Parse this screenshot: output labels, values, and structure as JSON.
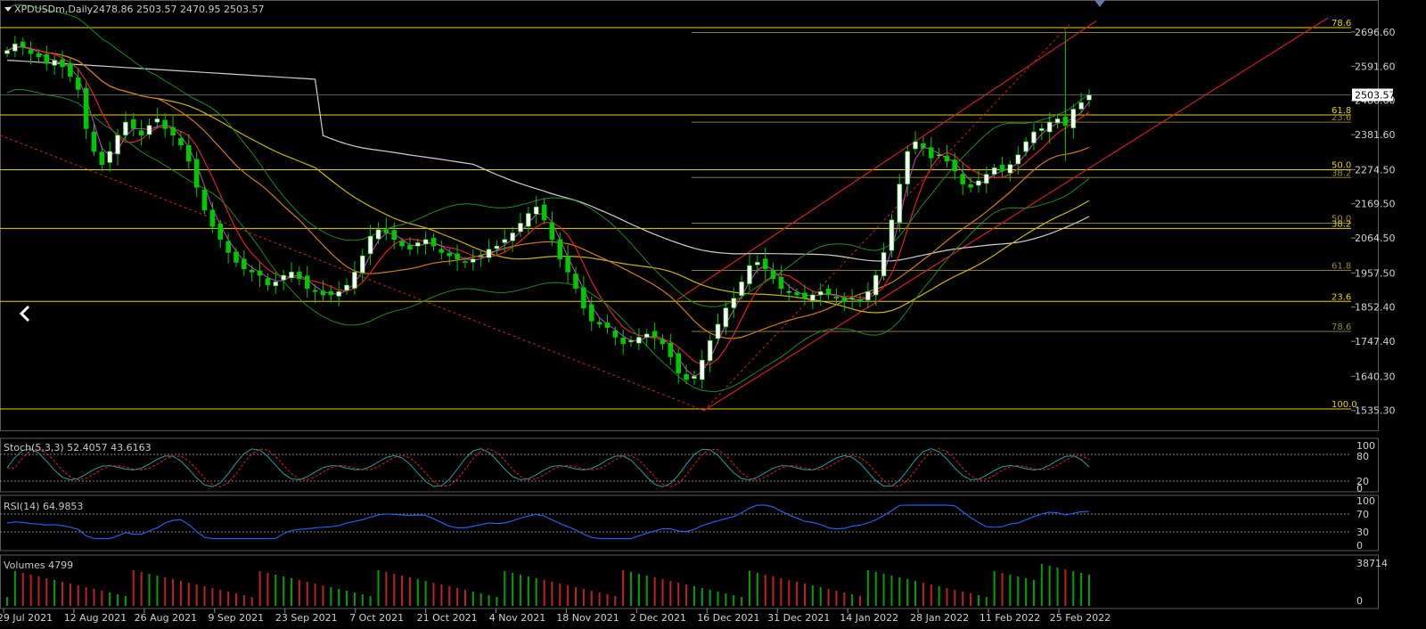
{
  "symbol_header": {
    "symbol": "XPDUSDm,Daily",
    "ohlc": "2478.86 2503.57 2470.95 2503.57"
  },
  "price_axis": {
    "ticks": [
      "2696.60",
      "2591.60",
      "2486.60",
      "2381.60",
      "2274.50",
      "2169.50",
      "2064.50",
      "1957.50",
      "1852.40",
      "1747.40",
      "1640.30",
      "1535.30"
    ],
    "current_price": "2503.57",
    "min": 1510,
    "max": 2740
  },
  "date_axis": {
    "labels": [
      "29 Jul 2021",
      "12 Aug 2021",
      "26 Aug 2021",
      "9 Sep 2021",
      "23 Sep 2021",
      "7 Oct 2021",
      "21 Oct 2021",
      "4 Nov 2021",
      "18 Nov 2021",
      "2 Dec 2021",
      "16 Dec 2021",
      "31 Dec 2021",
      "14 Jan 2022",
      "28 Jan 2022",
      "11 Feb 2022",
      "25 Feb 2022"
    ]
  },
  "fib_labels": {
    "upper": [
      {
        "text": "78.6",
        "price": 2710,
        "color": "#e8d000"
      },
      {
        "text": "61.8",
        "price": 2442,
        "color": "#e8d000"
      },
      {
        "text": "23.6",
        "price": 2420,
        "color": "#9a8a3a"
      },
      {
        "text": "50.0",
        "price": 2274,
        "color": "#e8d000"
      },
      {
        "text": "38.2",
        "price": 2250,
        "color": "#9a8a3a"
      },
      {
        "text": "50.0",
        "price": 2110,
        "color": "#9a8a3a"
      },
      {
        "text": "38.2",
        "price": 2094,
        "color": "#e8d000"
      },
      {
        "text": "61.8",
        "price": 1965,
        "color": "#9a8a3a"
      },
      {
        "text": "23.6",
        "price": 1870,
        "color": "#e8d000"
      },
      {
        "text": "78.6",
        "price": 1778,
        "color": "#9a8a3a"
      },
      {
        "text": "100.0",
        "price": 1540,
        "color": "#e8d000"
      }
    ]
  },
  "stoch_panel": {
    "label": "Stoch(5,3,3) 52.4057 43.6163",
    "levels": [
      "100",
      "80",
      "20",
      "0"
    ]
  },
  "rsi_panel": {
    "label": "RSI(14) 64.9853",
    "levels": [
      "100",
      "70",
      "30",
      "0"
    ]
  },
  "volume_panel": {
    "label": "Volumes 4799",
    "levels": [
      "38714",
      "0"
    ]
  },
  "colors": {
    "bull_candle": "#ffffff",
    "bear_candle": "#00c800",
    "fib_line": "#e8d000",
    "channel": "#d02020",
    "ma_white": "#cfcfcf",
    "ma_yellow": "#c8b400",
    "ma_orange": "#d07a10",
    "ma_red": "#e02020",
    "ma_magenta": "#d040d0",
    "bollinger": "#208a20",
    "stoch_main": "#20a0a0",
    "stoch_signal": "#e02020",
    "rsi": "#2060e0"
  },
  "icons": {
    "back_arrow": "chevron-left-icon",
    "header_menu": "triangle-down-icon"
  },
  "chart_data": {
    "type": "candlestick",
    "title": "XPDUSDm,Daily",
    "ylim": [
      1510,
      2740
    ],
    "closes": [
      2640,
      2660,
      2650,
      2630,
      2620,
      2600,
      2610,
      2590,
      2560,
      2520,
      2400,
      2330,
      2290,
      2330,
      2380,
      2420,
      2400,
      2380,
      2410,
      2430,
      2400,
      2380,
      2350,
      2300,
      2220,
      2150,
      2100,
      2060,
      2020,
      1990,
      1970,
      1960,
      1950,
      1920,
      1930,
      1950,
      1960,
      1940,
      1910,
      1900,
      1890,
      1890,
      1900,
      1920,
      1960,
      2010,
      2070,
      2090,
      2080,
      2060,
      2040,
      2030,
      2050,
      2060,
      2040,
      2020,
      2010,
      2000,
      1990,
      2000,
      2010,
      2030,
      2040,
      2060,
      2080,
      2110,
      2140,
      2160,
      2120,
      2060,
      2000,
      1960,
      1910,
      1850,
      1810,
      1800,
      1790,
      1760,
      1740,
      1750,
      1760,
      1770,
      1760,
      1740,
      1700,
      1650,
      1630,
      1640,
      1690,
      1750,
      1800,
      1850,
      1880,
      1930,
      1980,
      1990,
      1970,
      1940,
      1910,
      1900,
      1890,
      1880,
      1890,
      1900,
      1890,
      1880,
      1870,
      1880,
      1870,
      1900,
      1950,
      2020,
      2120,
      2230,
      2330,
      2360,
      2340,
      2310,
      2320,
      2300,
      2270,
      2230,
      2220,
      2240,
      2260,
      2280,
      2270,
      2290,
      2320,
      2360,
      2390,
      2400,
      2420,
      2430,
      2410,
      2460,
      2480,
      2503.57
    ],
    "date_labels": [
      "29 Jul 2021",
      "12 Aug 2021",
      "26 Aug 2021",
      "9 Sep 2021",
      "23 Sep 2021",
      "7 Oct 2021",
      "21 Oct 2021",
      "4 Nov 2021",
      "18 Nov 2021",
      "2 Dec 2021",
      "16 Dec 2021",
      "31 Dec 2021",
      "14 Jan 2022",
      "28 Jan 2022",
      "11 Feb 2022",
      "25 Feb 2022"
    ],
    "horizontal_levels": [
      2710,
      2442,
      2274,
      2094,
      1870,
      1540
    ],
    "current_price": 2503.57
  }
}
